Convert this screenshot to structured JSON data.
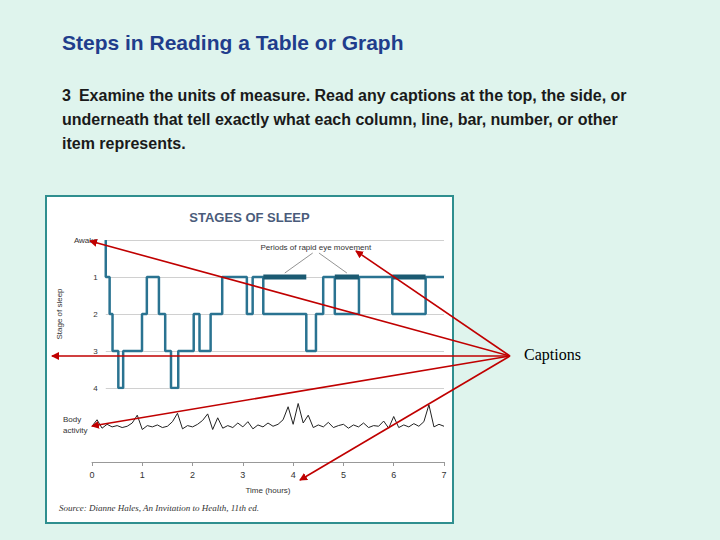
{
  "slide": {
    "title": "Steps in Reading a Table or Graph",
    "step": {
      "number": "3",
      "text": "Examine the units of measure. Read any captions at the top, the side, or underneath that tell exactly what each column, line, bar, number, or other item represents."
    },
    "callout": "Captions"
  },
  "chart_data": {
    "type": "line",
    "title": "STAGES OF SLEEP",
    "x_label": "Time (hours)",
    "y_label": "Stage of sleep",
    "x": [
      0,
      0.08,
      0.14,
      0.26,
      0.36,
      0.75,
      0.85,
      1.1,
      1.23,
      1.35,
      1.5,
      1.82,
      1.94,
      2.17,
      2.41,
      2.92,
      3.04,
      3.26,
      4.15,
      4.35,
      4.5,
      4.74,
      5.24,
      5.93,
      6.62,
      6.88,
      7
    ],
    "values": [
      0,
      1,
      2,
      3,
      4,
      3,
      2,
      1,
      2,
      3,
      4,
      3,
      2,
      3,
      2,
      1,
      2,
      1,
      2,
      3,
      2,
      1,
      2,
      1,
      2,
      1,
      1
    ],
    "color": "#2a7391",
    "line_style": "step",
    "xlim": [
      0,
      7
    ],
    "xticks": [
      0,
      1,
      2,
      3,
      4,
      5,
      6,
      7
    ],
    "ylim": [
      0,
      4
    ],
    "yticks": [
      {
        "value": 0,
        "label": "Awake"
      },
      1,
      2,
      3,
      4
    ],
    "grid": true,
    "rem_periods": {
      "label": "Periods of rapid eye movement",
      "stage": 1,
      "color": "#1b5a72",
      "x": [
        [
          3.26,
          4.15
        ],
        [
          4.74,
          5.24
        ],
        [
          5.93,
          6.62
        ]
      ]
    },
    "body_activity": {
      "label": "Body activity",
      "color": "#222222",
      "ylim": [
        0,
        10
      ],
      "tick_labels": false,
      "x": [
        0,
        0.1,
        0.2,
        0.3,
        0.4,
        0.5,
        0.6,
        0.7,
        0.8,
        0.9,
        1,
        1.1,
        1.2,
        1.3,
        1.4,
        1.5,
        1.6,
        1.7,
        1.8,
        1.9,
        2,
        2.1,
        2.2,
        2.3,
        2.4,
        2.5,
        2.6,
        2.7,
        2.8,
        2.9,
        3,
        3.1,
        3.2,
        3.3,
        3.4,
        3.5,
        3.6,
        3.7,
        3.8,
        3.9,
        4,
        4.1,
        4.2,
        4.3,
        4.4,
        4.5,
        4.6,
        4.7,
        4.8,
        4.9,
        5,
        5.1,
        5.2,
        5.3,
        5.4,
        5.5,
        5.6,
        5.7,
        5.8,
        5.9,
        6,
        6.1,
        6.2,
        6.3,
        6.4,
        6.5,
        6.6,
        6.7,
        6.8,
        6.9,
        7
      ],
      "values": [
        5.5,
        6.5,
        5.2,
        5.8,
        5.4,
        5.6,
        5.3,
        5.5,
        6.0,
        7.2,
        5.0,
        5.6,
        5.4,
        5.7,
        5.3,
        5.5,
        6.2,
        7.5,
        5.1,
        5.6,
        5.4,
        5.8,
        6.4,
        7.4,
        5.0,
        6.8,
        5.2,
        5.6,
        5.3,
        6.0,
        5.4,
        6.2,
        5.1,
        5.7,
        5.4,
        6.0,
        5.5,
        5.8,
        6.5,
        8.5,
        5.8,
        9.0,
        6.0,
        7.2,
        5.3,
        5.7,
        5.4,
        6.1,
        5.3,
        5.6,
        5.8,
        5.2,
        5.7,
        5.4,
        6.0,
        5.3,
        5.6,
        5.5,
        6.3,
        5.2,
        7.0,
        5.3,
        5.7,
        5.4,
        5.9,
        5.5,
        6.2,
        8.8,
        5.4,
        5.8,
        5.5
      ]
    },
    "source": "Source: Dianne Hales, An Invitation to Health, 11th ed."
  }
}
